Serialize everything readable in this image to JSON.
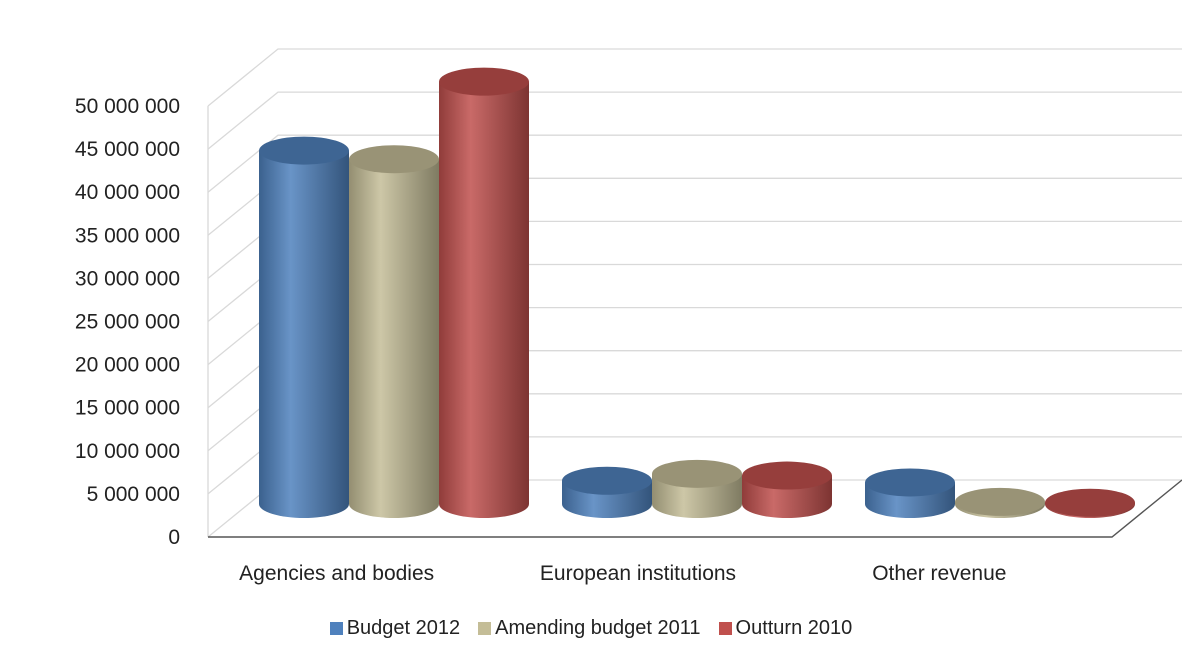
{
  "chart_data": {
    "type": "bar",
    "three_d": true,
    "categories": [
      "Agencies and bodies",
      "European institutions",
      "Other revenue"
    ],
    "series": [
      {
        "name": "Budget 2012",
        "color": "#4f81bd",
        "values": [
          41000000,
          2700000,
          2500000
        ]
      },
      {
        "name": "Amending budget 2011",
        "color": "#c4bd97",
        "values": [
          40000000,
          3500000,
          250000
        ]
      },
      {
        "name": "Outturn 2010",
        "color": "#c0504d",
        "values": [
          49000000,
          3300000,
          150000
        ]
      }
    ],
    "yticks": [
      "0",
      "5 000 000",
      "10 000 000",
      "15 000 000",
      "20 000 000",
      "25 000 000",
      "30 000 000",
      "35 000 000",
      "40 000 000",
      "45 000 000",
      "50 000 000"
    ],
    "ylim": [
      0,
      50000000
    ],
    "grid": true,
    "legend_position": "bottom",
    "title": "",
    "xlabel": "",
    "ylabel": ""
  }
}
